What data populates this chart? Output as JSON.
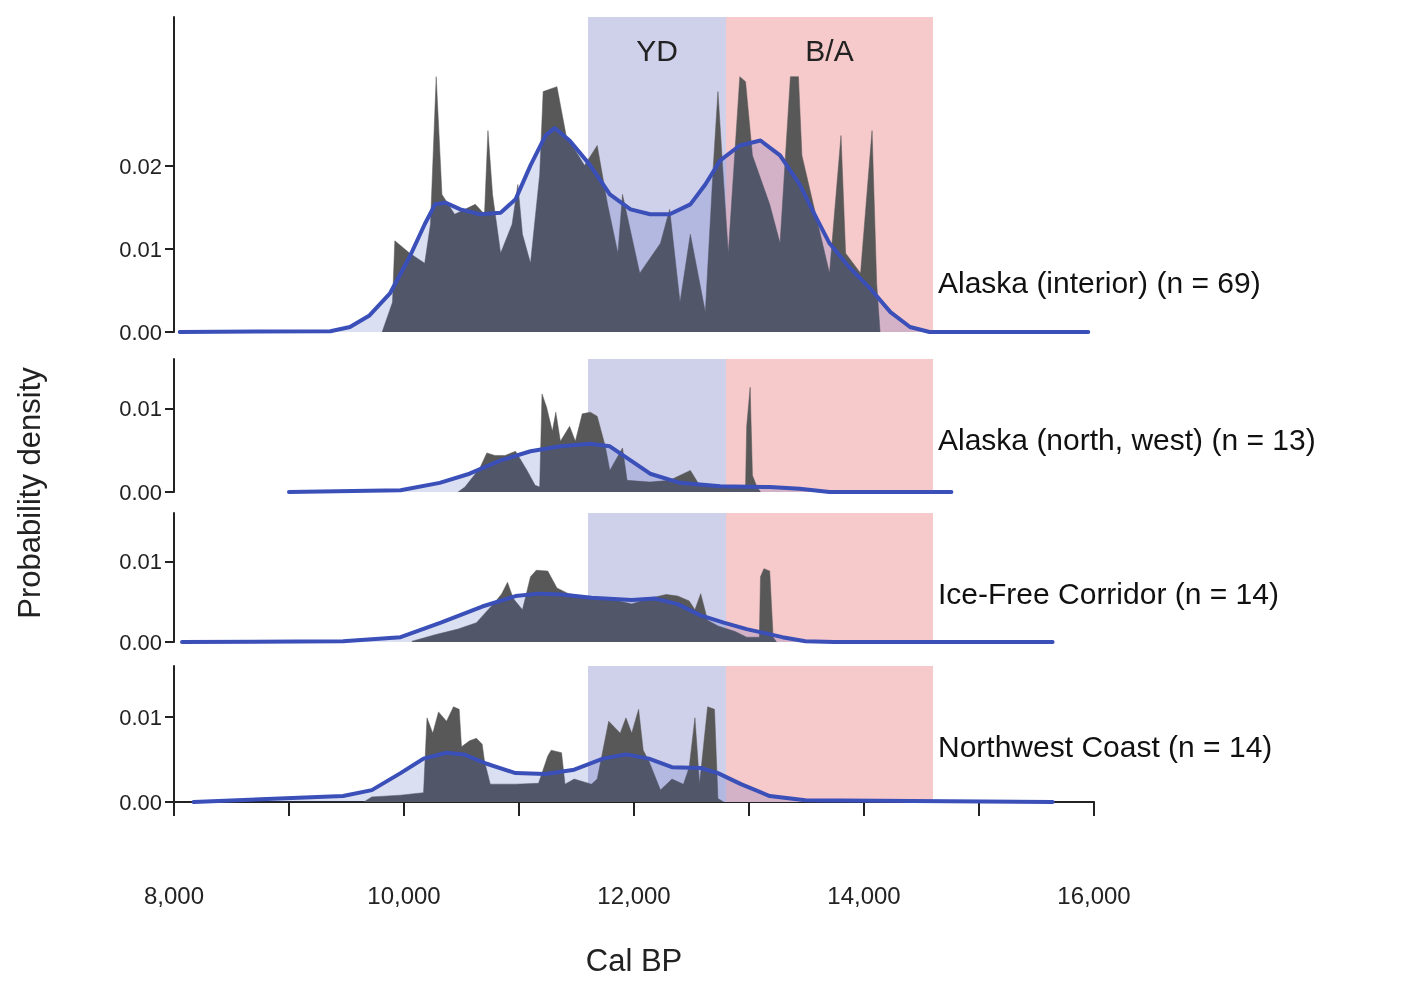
{
  "chart_data": [
    {
      "type": "area",
      "title": "Alaska (interior) (n = 69)",
      "ylabel": "Probability density",
      "xlim": [
        8000,
        16000
      ],
      "ylim": [
        0,
        0.038
      ],
      "yticks": [
        {
          "value": 0,
          "label": "0.00"
        },
        {
          "value": 0.01,
          "label": "0.01"
        },
        {
          "value": 0.02,
          "label": "0.02"
        }
      ],
      "tick_labels": "y",
      "bands": [
        {
          "axis": "x",
          "from": 11600,
          "to": 12800,
          "label": "YD",
          "color": "#cfd0ea"
        },
        {
          "axis": "x",
          "from": 12800,
          "to": 14600,
          "label": "B/A",
          "color": "#f6c9cb"
        }
      ],
      "series": [
        {
          "color": "#585858",
          "x": [
            9810,
            9900,
            9920,
            10050,
            10180,
            10230,
            10280,
            10330,
            10440,
            10620,
            10700,
            10730,
            10770,
            10840,
            10940,
            10990,
            11030,
            11100,
            11180,
            11210,
            11330,
            11410,
            11570,
            11680,
            11770,
            11860,
            11900,
            12050,
            12230,
            12310,
            12400,
            12490,
            12620,
            12690,
            12730,
            12770,
            12820,
            12920,
            12970,
            13030,
            13180,
            13270,
            13360,
            13430,
            13460,
            13620,
            13700,
            13800,
            13840,
            13970,
            14070,
            14110,
            14140
          ],
          "values": [
            0,
            0.0036,
            0.011,
            0.0095,
            0.0083,
            0.013,
            0.0308,
            0.0166,
            0.0142,
            0.0154,
            0.0142,
            0.0243,
            0.0166,
            0.0095,
            0.013,
            0.0178,
            0.0118,
            0.0083,
            0.019,
            0.029,
            0.0296,
            0.0237,
            0.0201,
            0.0225,
            0.0154,
            0.0095,
            0.0166,
            0.0071,
            0.0107,
            0.0148,
            0.0036,
            0.0118,
            0.0024,
            0.0201,
            0.029,
            0.0201,
            0.0095,
            0.0308,
            0.0302,
            0.0213,
            0.0154,
            0.0107,
            0.0308,
            0.0308,
            0.0213,
            0.0118,
            0.0071,
            0.0237,
            0.0095,
            0.0071,
            0.0243,
            0.0059,
            0
          ]
        },
        {
          "color": "#3a4fb8",
          "x": [
            8050,
            9360,
            9530,
            9700,
            9880,
            10050,
            10180,
            10270,
            10360,
            10490,
            10660,
            10840,
            10970,
            11100,
            11230,
            11310,
            11440,
            11620,
            11790,
            11970,
            12140,
            12310,
            12490,
            12620,
            12750,
            12920,
            13100,
            13270,
            13440,
            13570,
            13700,
            13880,
            14050,
            14230,
            14400,
            14570,
            15950
          ],
          "values": [
            0,
            0.0001,
            0.0006,
            0.002,
            0.0047,
            0.0091,
            0.013,
            0.0154,
            0.0156,
            0.0148,
            0.0142,
            0.0144,
            0.016,
            0.0201,
            0.0237,
            0.0246,
            0.0231,
            0.0201,
            0.0166,
            0.0148,
            0.0142,
            0.0142,
            0.0154,
            0.0178,
            0.0207,
            0.0225,
            0.0231,
            0.0213,
            0.0178,
            0.0142,
            0.0107,
            0.0077,
            0.0053,
            0.0024,
            0.0006,
            0,
            0
          ]
        }
      ]
    },
    {
      "type": "area",
      "title": "Alaska (north, west) (n = 13)",
      "xlim": [
        8000,
        16000
      ],
      "ylim": [
        0,
        0.016
      ],
      "yticks": [
        {
          "value": 0,
          "label": "0.00"
        },
        {
          "value": 0.01,
          "label": "0.01"
        }
      ],
      "tick_labels": "y",
      "bands": [
        {
          "axis": "x",
          "from": 11600,
          "to": 12800,
          "color": "#cfd0ea"
        },
        {
          "axis": "x",
          "from": 12800,
          "to": 14600,
          "color": "#f6c9cb"
        }
      ],
      "series": [
        {
          "color": "#585858",
          "x": [
            10470,
            10530,
            10660,
            10720,
            10790,
            10880,
            10970,
            11070,
            11140,
            11180,
            11200,
            11240,
            11290,
            11320,
            11360,
            11440,
            11490,
            11550,
            11620,
            11680,
            11750,
            11790,
            11900,
            11940,
            12140,
            12310,
            12490,
            12570,
            12750,
            12970,
            12980,
            13010,
            13030,
            13070,
            13100
          ],
          "values": [
            0,
            0.0006,
            0.0029,
            0.0047,
            0.0044,
            0.0044,
            0.0049,
            0.0026,
            0.0008,
            0.0006,
            0.0118,
            0.0102,
            0.0073,
            0.0096,
            0.0061,
            0.0079,
            0.0061,
            0.0094,
            0.0096,
            0.0091,
            0.0055,
            0.0026,
            0.0053,
            0.0014,
            0.0012,
            0.0014,
            0.0026,
            0.0008,
            0.0006,
            0.0006,
            0.0079,
            0.0126,
            0.002,
            0.0006,
            0
          ]
        },
        {
          "color": "#3a4fb8",
          "x": [
            9000,
            9970,
            10310,
            10570,
            10840,
            11100,
            11360,
            11620,
            11790,
            11970,
            12140,
            12400,
            12750,
            13180,
            13440,
            13700,
            14760
          ],
          "values": [
            0,
            0.0002,
            0.0011,
            0.0022,
            0.0038,
            0.0049,
            0.0055,
            0.0058,
            0.0055,
            0.0038,
            0.0022,
            0.0011,
            0.0007,
            0.0006,
            0.0004,
            0,
            0
          ]
        }
      ]
    },
    {
      "type": "area",
      "title": "Ice-Free Corridor (n = 14)",
      "xlim": [
        8000,
        16000
      ],
      "ylim": [
        0,
        0.016
      ],
      "yticks": [
        {
          "value": 0,
          "label": "0.00"
        },
        {
          "value": 0.01,
          "label": "0.01"
        }
      ],
      "tick_labels": "y",
      "bands": [
        {
          "axis": "x",
          "from": 11600,
          "to": 12800,
          "color": "#cfd0ea"
        },
        {
          "axis": "x",
          "from": 12800,
          "to": 14600,
          "color": "#f6c9cb"
        }
      ],
      "series": [
        {
          "color": "#585858",
          "x": [
            10070,
            10270,
            10470,
            10630,
            10800,
            10850,
            10900,
            10950,
            11030,
            11100,
            11150,
            11250,
            11330,
            11430,
            11630,
            11780,
            11980,
            12130,
            12280,
            12380,
            12480,
            12530,
            12580,
            12640,
            12730,
            12880,
            12980,
            13090,
            13100,
            13130,
            13180,
            13210,
            13240
          ],
          "values": [
            0.0001,
            0.0009,
            0.0016,
            0.0024,
            0.0051,
            0.006,
            0.0074,
            0.0054,
            0.004,
            0.0081,
            0.0089,
            0.0088,
            0.0067,
            0.006,
            0.0054,
            0.0054,
            0.0047,
            0.0054,
            0.0059,
            0.0057,
            0.0051,
            0.004,
            0.006,
            0.0027,
            0.002,
            0.0013,
            0.0006,
            0.0006,
            0.0081,
            0.0091,
            0.0088,
            0.0006,
            0
          ]
        },
        {
          "color": "#3a4fb8",
          "x": [
            8070,
            9470,
            9970,
            10320,
            10680,
            10970,
            11170,
            11370,
            11630,
            11980,
            12180,
            12380,
            12580,
            12780,
            12980,
            13290,
            13490,
            13740,
            15640
          ],
          "values": [
            0,
            0.0001,
            0.0006,
            0.0024,
            0.0044,
            0.0057,
            0.006,
            0.0059,
            0.0055,
            0.0052,
            0.0054,
            0.0047,
            0.0033,
            0.0024,
            0.0016,
            0.0006,
            0.0001,
            0,
            0
          ]
        }
      ]
    },
    {
      "type": "area",
      "title": "Northwest Coast (n = 14)",
      "xlabel": "Cal BP",
      "xlim": [
        8000,
        16000
      ],
      "ylim": [
        0,
        0.016
      ],
      "yticks": [
        {
          "value": 0,
          "label": "0.00"
        },
        {
          "value": 0.01,
          "label": "0.01"
        }
      ],
      "xticks": [
        {
          "value": 8000,
          "label": "8,000"
        },
        {
          "value": 9000,
          "label": null
        },
        {
          "value": 10000,
          "label": "10,000"
        },
        {
          "value": 11000,
          "label": null
        },
        {
          "value": 12000,
          "label": "12,000"
        },
        {
          "value": 13000,
          "label": null
        },
        {
          "value": 14000,
          "label": "14,000"
        },
        {
          "value": 15000,
          "label": null
        },
        {
          "value": 16000,
          "label": "16,000"
        }
      ],
      "bands": [
        {
          "axis": "x",
          "from": 11600,
          "to": 12800,
          "color": "#cfd0ea"
        },
        {
          "axis": "x",
          "from": 12800,
          "to": 14600,
          "color": "#f6c9cb"
        }
      ],
      "series": [
        {
          "color": "#585858",
          "x": [
            9650,
            9720,
            9970,
            10170,
            10200,
            10250,
            10300,
            10370,
            10430,
            10480,
            10500,
            10570,
            10630,
            10680,
            10700,
            10750,
            10970,
            11170,
            11250,
            11280,
            11370,
            11400,
            11480,
            11630,
            11680,
            11780,
            11880,
            11930,
            11980,
            12040,
            12080,
            12130,
            12230,
            12330,
            12430,
            12480,
            12530,
            12570,
            12640,
            12700,
            12730,
            12780
          ],
          "values": [
            0,
            0.0006,
            0.0008,
            0.0011,
            0.0099,
            0.0081,
            0.0106,
            0.0095,
            0.0112,
            0.0109,
            0.0065,
            0.0072,
            0.0075,
            0.0068,
            0.0048,
            0.0021,
            0.0021,
            0.0022,
            0.0054,
            0.0061,
            0.0058,
            0.0021,
            0.0027,
            0.0021,
            0.0027,
            0.0095,
            0.0081,
            0.0099,
            0.0081,
            0.0109,
            0.0061,
            0.0048,
            0.0014,
            0.0027,
            0.0021,
            0.0041,
            0.0099,
            0.0021,
            0.0112,
            0.0109,
            0.0004,
            0
          ]
        },
        {
          "color": "#3a4fb8",
          "x": [
            8170,
            9470,
            9720,
            9970,
            10170,
            10370,
            10520,
            10720,
            10970,
            11230,
            11480,
            11730,
            11930,
            12130,
            12330,
            12580,
            12730,
            12930,
            13180,
            13490,
            15640
          ],
          "values": [
            0,
            0.0007,
            0.0014,
            0.0034,
            0.0051,
            0.0058,
            0.0056,
            0.0045,
            0.0034,
            0.0033,
            0.0038,
            0.0051,
            0.0056,
            0.0051,
            0.0041,
            0.004,
            0.0034,
            0.0021,
            0.0007,
            0.0002,
            0
          ]
        }
      ]
    }
  ]
}
